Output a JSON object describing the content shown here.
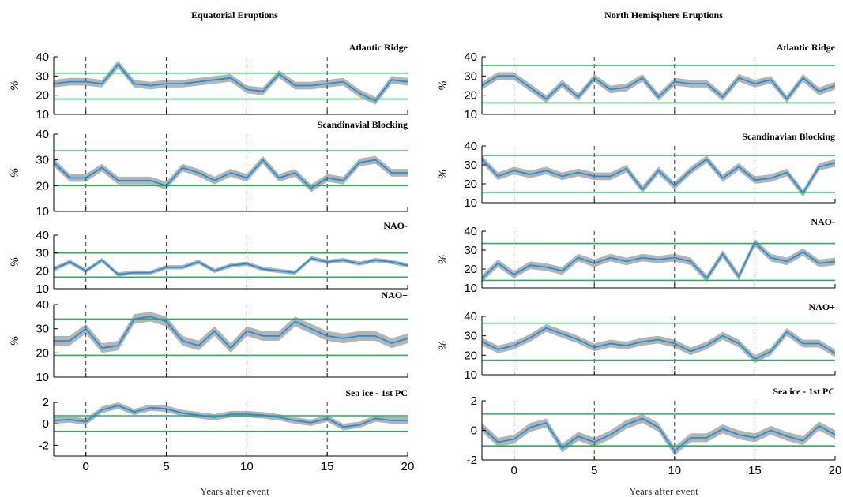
{
  "colors": {
    "series": "#1f8fd6",
    "band": "#b4b4b4",
    "threshold": "#2fae5a",
    "event_line": "#333333",
    "axis": "#000000"
  },
  "columns": [
    {
      "title": "Equatorial Eruptions",
      "xlabel": "Years after event"
    },
    {
      "title": "North Hemisphere Eruptions",
      "xlabel": "Years after event"
    }
  ],
  "chart_data": [
    {
      "type": "line",
      "column": 0,
      "row": 0,
      "title": "Atlantic Ridge",
      "ylabel": "%",
      "xlim": [
        -2,
        20
      ],
      "ylim": [
        10,
        40
      ],
      "yticks": [
        10,
        20,
        30,
        40
      ],
      "xticks": [
        0,
        5,
        10,
        15,
        20
      ],
      "event_lines": [
        0,
        5,
        10,
        15
      ],
      "thresholds": [
        18,
        31.5
      ],
      "band_halfwidth": 2,
      "x": [
        -2,
        -1,
        0,
        1,
        2,
        3,
        4,
        5,
        6,
        7,
        8,
        9,
        10,
        11,
        12,
        13,
        14,
        15,
        16,
        17,
        18,
        19,
        20
      ],
      "y": [
        26,
        27,
        27,
        26,
        36,
        26,
        25,
        26,
        26,
        27,
        28,
        29,
        23,
        22,
        31,
        25,
        25,
        26,
        27,
        21,
        17,
        28,
        27
      ]
    },
    {
      "type": "line",
      "column": 0,
      "row": 1,
      "title": "Scandinavial Blocking",
      "ylabel": "%",
      "xlim": [
        -2,
        20
      ],
      "ylim": [
        10,
        40
      ],
      "yticks": [
        10,
        20,
        30,
        40
      ],
      "xticks": [
        0,
        5,
        10,
        15,
        20
      ],
      "event_lines": [
        0,
        5,
        10,
        15
      ],
      "thresholds": [
        20,
        33.5
      ],
      "band_halfwidth": 1.5,
      "x": [
        -2,
        -1,
        0,
        1,
        2,
        3,
        4,
        5,
        6,
        7,
        8,
        9,
        10,
        11,
        12,
        13,
        14,
        15,
        16,
        17,
        18,
        19,
        20
      ],
      "y": [
        29,
        23,
        23,
        27,
        22,
        22,
        22,
        20,
        27,
        25,
        22,
        25,
        23,
        30,
        23,
        25,
        19,
        23,
        22,
        29,
        30,
        25,
        25
      ]
    },
    {
      "type": "line",
      "column": 0,
      "row": 2,
      "title": "NAO-",
      "ylabel": "%",
      "xlim": [
        -2,
        20
      ],
      "ylim": [
        10,
        40
      ],
      "yticks": [
        10,
        20,
        30,
        40
      ],
      "xticks": [
        0,
        5,
        10,
        15,
        20
      ],
      "event_lines": [
        0,
        5,
        10,
        15
      ],
      "thresholds": [
        16.5,
        30
      ],
      "band_halfwidth": 1.2,
      "x": [
        -2,
        -1,
        0,
        1,
        2,
        3,
        4,
        5,
        6,
        7,
        8,
        9,
        10,
        11,
        12,
        13,
        14,
        15,
        16,
        17,
        18,
        19,
        20
      ],
      "y": [
        21,
        25,
        20,
        26,
        18,
        19,
        19,
        22,
        22,
        25,
        20,
        23,
        24,
        21,
        20,
        19,
        27,
        25,
        26,
        24,
        26,
        25,
        23
      ]
    },
    {
      "type": "line",
      "column": 0,
      "row": 3,
      "title": "NAO+",
      "ylabel": "%",
      "xlim": [
        -2,
        20
      ],
      "ylim": [
        10,
        40
      ],
      "yticks": [
        10,
        20,
        30,
        40
      ],
      "xticks": [
        0,
        5,
        10,
        15,
        20
      ],
      "event_lines": [
        0,
        5,
        10,
        15
      ],
      "thresholds": [
        19,
        34
      ],
      "band_halfwidth": 2,
      "x": [
        -2,
        -1,
        0,
        1,
        2,
        3,
        4,
        5,
        6,
        7,
        8,
        9,
        10,
        11,
        12,
        13,
        14,
        15,
        16,
        17,
        18,
        19,
        20
      ],
      "y": [
        25,
        25,
        30,
        22,
        23,
        34,
        35,
        33,
        25,
        23,
        29,
        22,
        29,
        27,
        27,
        33,
        30,
        27,
        26,
        27,
        27,
        24,
        26
      ]
    },
    {
      "type": "line",
      "column": 0,
      "row": 4,
      "title": "Sea ice - 1st PC",
      "ylabel": "",
      "xlim": [
        -2,
        20
      ],
      "ylim": [
        -3,
        2
      ],
      "yticks": [
        -2,
        0,
        2
      ],
      "xticks": [
        0,
        5,
        10,
        15,
        20
      ],
      "event_lines": [
        0,
        5,
        10,
        15
      ],
      "thresholds": [
        -0.7,
        0.75
      ],
      "band_halfwidth": 0.3,
      "x": [
        -2,
        -1,
        0,
        1,
        2,
        3,
        4,
        5,
        6,
        7,
        8,
        9,
        10,
        11,
        12,
        13,
        14,
        15,
        16,
        17,
        18,
        19,
        20
      ],
      "y": [
        0.3,
        0.4,
        0.2,
        1.3,
        1.7,
        1.1,
        1.5,
        1.4,
        1.0,
        0.8,
        0.6,
        0.9,
        0.9,
        0.8,
        0.6,
        0.3,
        0.1,
        0.5,
        -0.3,
        -0.1,
        0.5,
        0.3,
        0.3
      ]
    },
    {
      "type": "line",
      "column": 1,
      "row": 0,
      "title": "Atlantic Ridge",
      "ylabel": "%",
      "xlim": [
        -2,
        20
      ],
      "ylim": [
        10,
        40
      ],
      "yticks": [
        10,
        20,
        30,
        40
      ],
      "xticks": [
        0,
        5,
        10,
        15,
        20
      ],
      "event_lines": [
        0,
        5,
        10,
        15
      ],
      "thresholds": [
        16,
        35.5
      ],
      "band_halfwidth": 2,
      "x": [
        -2,
        -1,
        0,
        1,
        2,
        3,
        4,
        5,
        6,
        7,
        8,
        9,
        10,
        11,
        12,
        13,
        14,
        15,
        16,
        17,
        18,
        19,
        20
      ],
      "y": [
        25,
        30,
        30,
        24,
        18,
        26,
        19,
        29,
        23,
        24,
        29,
        19,
        27,
        26,
        26,
        19,
        29,
        26,
        28,
        18,
        29,
        22,
        25
      ]
    },
    {
      "type": "line",
      "column": 1,
      "row": 1,
      "title": "Scandinavian Blocking",
      "ylabel": "%",
      "xlim": [
        -2,
        20
      ],
      "ylim": [
        10,
        40
      ],
      "yticks": [
        10,
        20,
        30,
        40
      ],
      "xticks": [
        0,
        5,
        10,
        15,
        20
      ],
      "event_lines": [
        0,
        5,
        10,
        15
      ],
      "thresholds": [
        15.5,
        35
      ],
      "band_halfwidth": 2,
      "x": [
        -2,
        -1,
        0,
        1,
        2,
        3,
        4,
        5,
        6,
        7,
        8,
        9,
        10,
        11,
        12,
        13,
        14,
        15,
        16,
        17,
        18,
        19,
        20
      ],
      "y": [
        33,
        24,
        27,
        25,
        27,
        24,
        26,
        24,
        24,
        28,
        17,
        27,
        19,
        27,
        33,
        23,
        29,
        22,
        23,
        26,
        15,
        29,
        31
      ]
    },
    {
      "type": "line",
      "column": 1,
      "row": 2,
      "title": "NAO-",
      "ylabel": "%",
      "xlim": [
        -2,
        20
      ],
      "ylim": [
        10,
        40
      ],
      "yticks": [
        10,
        20,
        30,
        40
      ],
      "xticks": [
        0,
        5,
        10,
        15,
        20
      ],
      "event_lines": [
        0,
        5,
        10,
        15
      ],
      "thresholds": [
        14,
        33.5
      ],
      "band_halfwidth": 2,
      "x": [
        -2,
        -1,
        0,
        1,
        2,
        3,
        4,
        5,
        6,
        7,
        8,
        9,
        10,
        11,
        12,
        13,
        14,
        15,
        16,
        17,
        18,
        19,
        20
      ],
      "y": [
        15,
        23,
        17,
        22,
        21,
        19,
        26,
        23,
        26,
        24,
        26,
        25,
        26,
        24,
        15,
        28,
        16,
        34,
        26,
        24,
        29,
        23,
        24
      ]
    },
    {
      "type": "line",
      "column": 1,
      "row": 3,
      "title": "NAO+",
      "ylabel": "%",
      "xlim": [
        -2,
        20
      ],
      "ylim": [
        10,
        40
      ],
      "yticks": [
        10,
        20,
        30,
        40
      ],
      "xticks": [
        0,
        5,
        10,
        15,
        20
      ],
      "event_lines": [
        0,
        5,
        10,
        15
      ],
      "thresholds": [
        17.5,
        36.5
      ],
      "band_halfwidth": 2,
      "x": [
        -2,
        -1,
        0,
        1,
        2,
        3,
        4,
        5,
        6,
        7,
        8,
        9,
        10,
        11,
        12,
        13,
        14,
        15,
        16,
        17,
        18,
        19,
        20
      ],
      "y": [
        27,
        23,
        25,
        29,
        34,
        31,
        28,
        24,
        26,
        25,
        27,
        28,
        26,
        22,
        25,
        30,
        26,
        18,
        22,
        32,
        26,
        26,
        21
      ]
    },
    {
      "type": "line",
      "column": 1,
      "row": 4,
      "title": "Sea ice - 1st PC",
      "ylabel": "",
      "xlim": [
        -2,
        20
      ],
      "ylim": [
        -2,
        2
      ],
      "yticks": [
        -2,
        0,
        2
      ],
      "xticks": [
        0,
        5,
        10,
        15,
        20
      ],
      "event_lines": [
        0,
        5,
        10,
        15
      ],
      "thresholds": [
        -1.05,
        1.1
      ],
      "band_halfwidth": 0.3,
      "x": [
        -2,
        -1,
        0,
        1,
        2,
        3,
        4,
        5,
        6,
        7,
        8,
        9,
        10,
        11,
        12,
        13,
        14,
        15,
        16,
        17,
        18,
        19,
        20
      ],
      "y": [
        0.2,
        -0.8,
        -0.6,
        0.2,
        0.5,
        -1.2,
        -0.4,
        -0.8,
        -0.3,
        0.4,
        0.8,
        0.2,
        -1.4,
        -0.5,
        -0.5,
        0.1,
        -0.3,
        -0.5,
        0.0,
        -0.4,
        -0.7,
        0.3,
        -0.3
      ]
    }
  ]
}
